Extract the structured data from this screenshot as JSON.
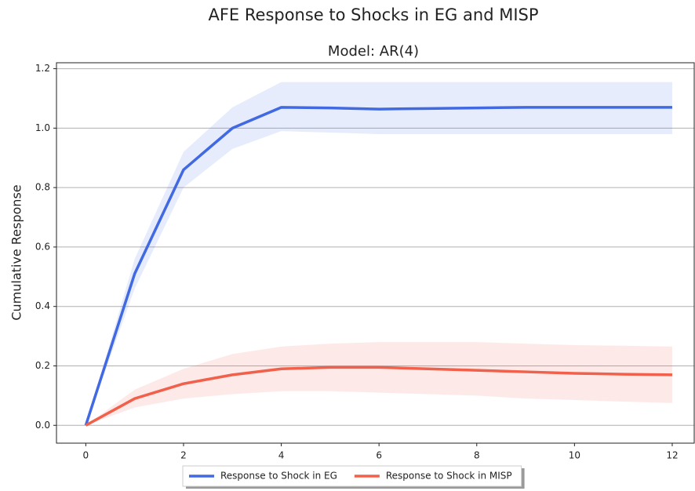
{
  "chart_data": {
    "type": "line",
    "title": "AFE Response to Shocks in EG and MISP",
    "subtitle": "Model: AR(4)",
    "y_label": "Cumulative Response",
    "x": [
      0,
      1,
      2,
      3,
      4,
      5,
      6,
      7,
      8,
      9,
      10,
      11,
      12
    ],
    "series": [
      {
        "name": "Response to Shock in EG",
        "color": "#4169e1",
        "values": [
          0,
          0.51,
          0.86,
          1.0,
          1.07,
          1.068,
          1.064,
          1.066,
          1.068,
          1.07,
          1.07,
          1.07,
          1.07
        ],
        "upper": [
          0,
          0.56,
          0.92,
          1.07,
          1.155,
          1.155,
          1.155,
          1.155,
          1.155,
          1.155,
          1.155,
          1.155,
          1.155
        ],
        "lower": [
          0,
          0.46,
          0.8,
          0.93,
          0.99,
          0.985,
          0.98,
          0.98,
          0.98,
          0.98,
          0.98,
          0.98,
          0.98
        ]
      },
      {
        "name": "Response to Shock in MISP",
        "color": "#f0604a",
        "values": [
          0,
          0.09,
          0.14,
          0.17,
          0.19,
          0.195,
          0.195,
          0.19,
          0.185,
          0.18,
          0.175,
          0.172,
          0.17
        ],
        "upper": [
          0,
          0.12,
          0.19,
          0.24,
          0.265,
          0.275,
          0.28,
          0.28,
          0.28,
          0.275,
          0.27,
          0.268,
          0.265
        ],
        "lower": [
          0,
          0.06,
          0.09,
          0.105,
          0.115,
          0.115,
          0.11,
          0.105,
          0.1,
          0.09,
          0.085,
          0.08,
          0.075
        ]
      }
    ],
    "xlim": [
      -0.6,
      12.45
    ],
    "ylim": [
      -0.06,
      1.22
    ],
    "xticks": [
      0,
      2,
      4,
      6,
      8,
      10,
      12
    ],
    "yticks": [
      {
        "value": 0,
        "label": "0.0"
      },
      0.2,
      0.4,
      0.6,
      0.8,
      {
        "value": 1,
        "label": "1.0"
      },
      1.2
    ],
    "grid": "y",
    "legend": "bottom"
  }
}
